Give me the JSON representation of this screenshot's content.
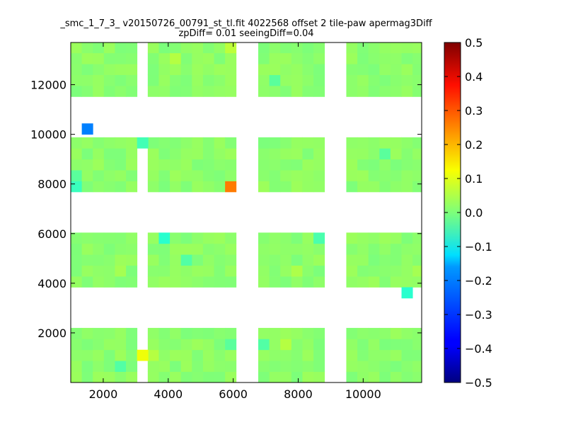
{
  "chart_data": {
    "type": "heatmap",
    "title": "_smc_1_7_3_ v20150726_00791_st_tl.fit 4022568 offset 2 tile-paw apermag3Diff",
    "subtitle": "zpDiff= 0.01 seeingDiff=0.04",
    "xlabel": "",
    "ylabel": "",
    "xlim": [
      1000,
      11800
    ],
    "ylim": [
      0,
      13700
    ],
    "xticks": [
      2000,
      4000,
      6000,
      8000,
      10000
    ],
    "yticks": [
      2000,
      4000,
      6000,
      8000,
      10000,
      12000
    ],
    "colorbar": {
      "colormap": "jet",
      "vmin": -0.5,
      "vmax": 0.5,
      "ticks": [
        "0.5",
        "0.4",
        "0.3",
        "0.2",
        "0.1",
        "0.0",
        "−0.1",
        "−0.2",
        "−0.3",
        "−0.4",
        "−0.5"
      ]
    },
    "cell_size": [
      340,
      440
    ],
    "x_columns": {
      "col1": [
        1000,
        1340,
        1680,
        2020,
        2360,
        2700
      ],
      "col2": [
        3370,
        3710,
        4050,
        4390,
        4730,
        5070,
        5410,
        5750
      ],
      "col3": [
        6770,
        7110,
        7450,
        7790,
        8130,
        8470
      ],
      "col4": [
        9480,
        9820,
        10160,
        10500,
        10840,
        11180,
        11520
      ]
    },
    "y_rows": {
      "row1": [
        0,
        440,
        880,
        1320,
        1760
      ],
      "row2": [
        3840,
        4280,
        4720,
        5160,
        5600
      ],
      "row3": [
        7680,
        8120,
        8560,
        9000,
        9440
      ],
      "row4": [
        11520,
        11960,
        12400,
        12840,
        13280
      ]
    },
    "base_value": 0.02,
    "cells": [
      {
        "x": 1340,
        "y": 10000,
        "value": -0.25
      },
      {
        "x": 5750,
        "y": 7680,
        "value": 0.28
      },
      {
        "x": 3040,
        "y": 880,
        "value": 0.14
      },
      {
        "x": 3040,
        "y": 9440,
        "value": -0.07
      },
      {
        "x": 3710,
        "y": 5600,
        "value": -0.1
      },
      {
        "x": 11180,
        "y": 3400,
        "value": -0.1
      },
      {
        "x": 1000,
        "y": 7680,
        "value": -0.08
      },
      {
        "x": 8470,
        "y": 5600,
        "value": -0.06
      },
      {
        "x": 5750,
        "y": 13280,
        "value": 0.08
      },
      {
        "x": 7450,
        "y": 1320,
        "value": 0.07
      },
      {
        "x": 3370,
        "y": 880,
        "value": 0.07
      },
      {
        "x": 5750,
        "y": 1320,
        "value": -0.04
      },
      {
        "x": 4390,
        "y": 4720,
        "value": -0.05
      },
      {
        "x": 7790,
        "y": 4280,
        "value": 0.06
      },
      {
        "x": 2360,
        "y": 4280,
        "value": 0.05
      },
      {
        "x": 1000,
        "y": 8120,
        "value": -0.04
      },
      {
        "x": 2360,
        "y": 440,
        "value": -0.05
      },
      {
        "x": 10500,
        "y": 9000,
        "value": -0.04
      },
      {
        "x": 11520,
        "y": 4280,
        "value": 0.05
      },
      {
        "x": 6770,
        "y": 1320,
        "value": -0.05
      },
      {
        "x": 4050,
        "y": 12840,
        "value": 0.07
      },
      {
        "x": 7110,
        "y": 11960,
        "value": -0.04
      }
    ]
  }
}
